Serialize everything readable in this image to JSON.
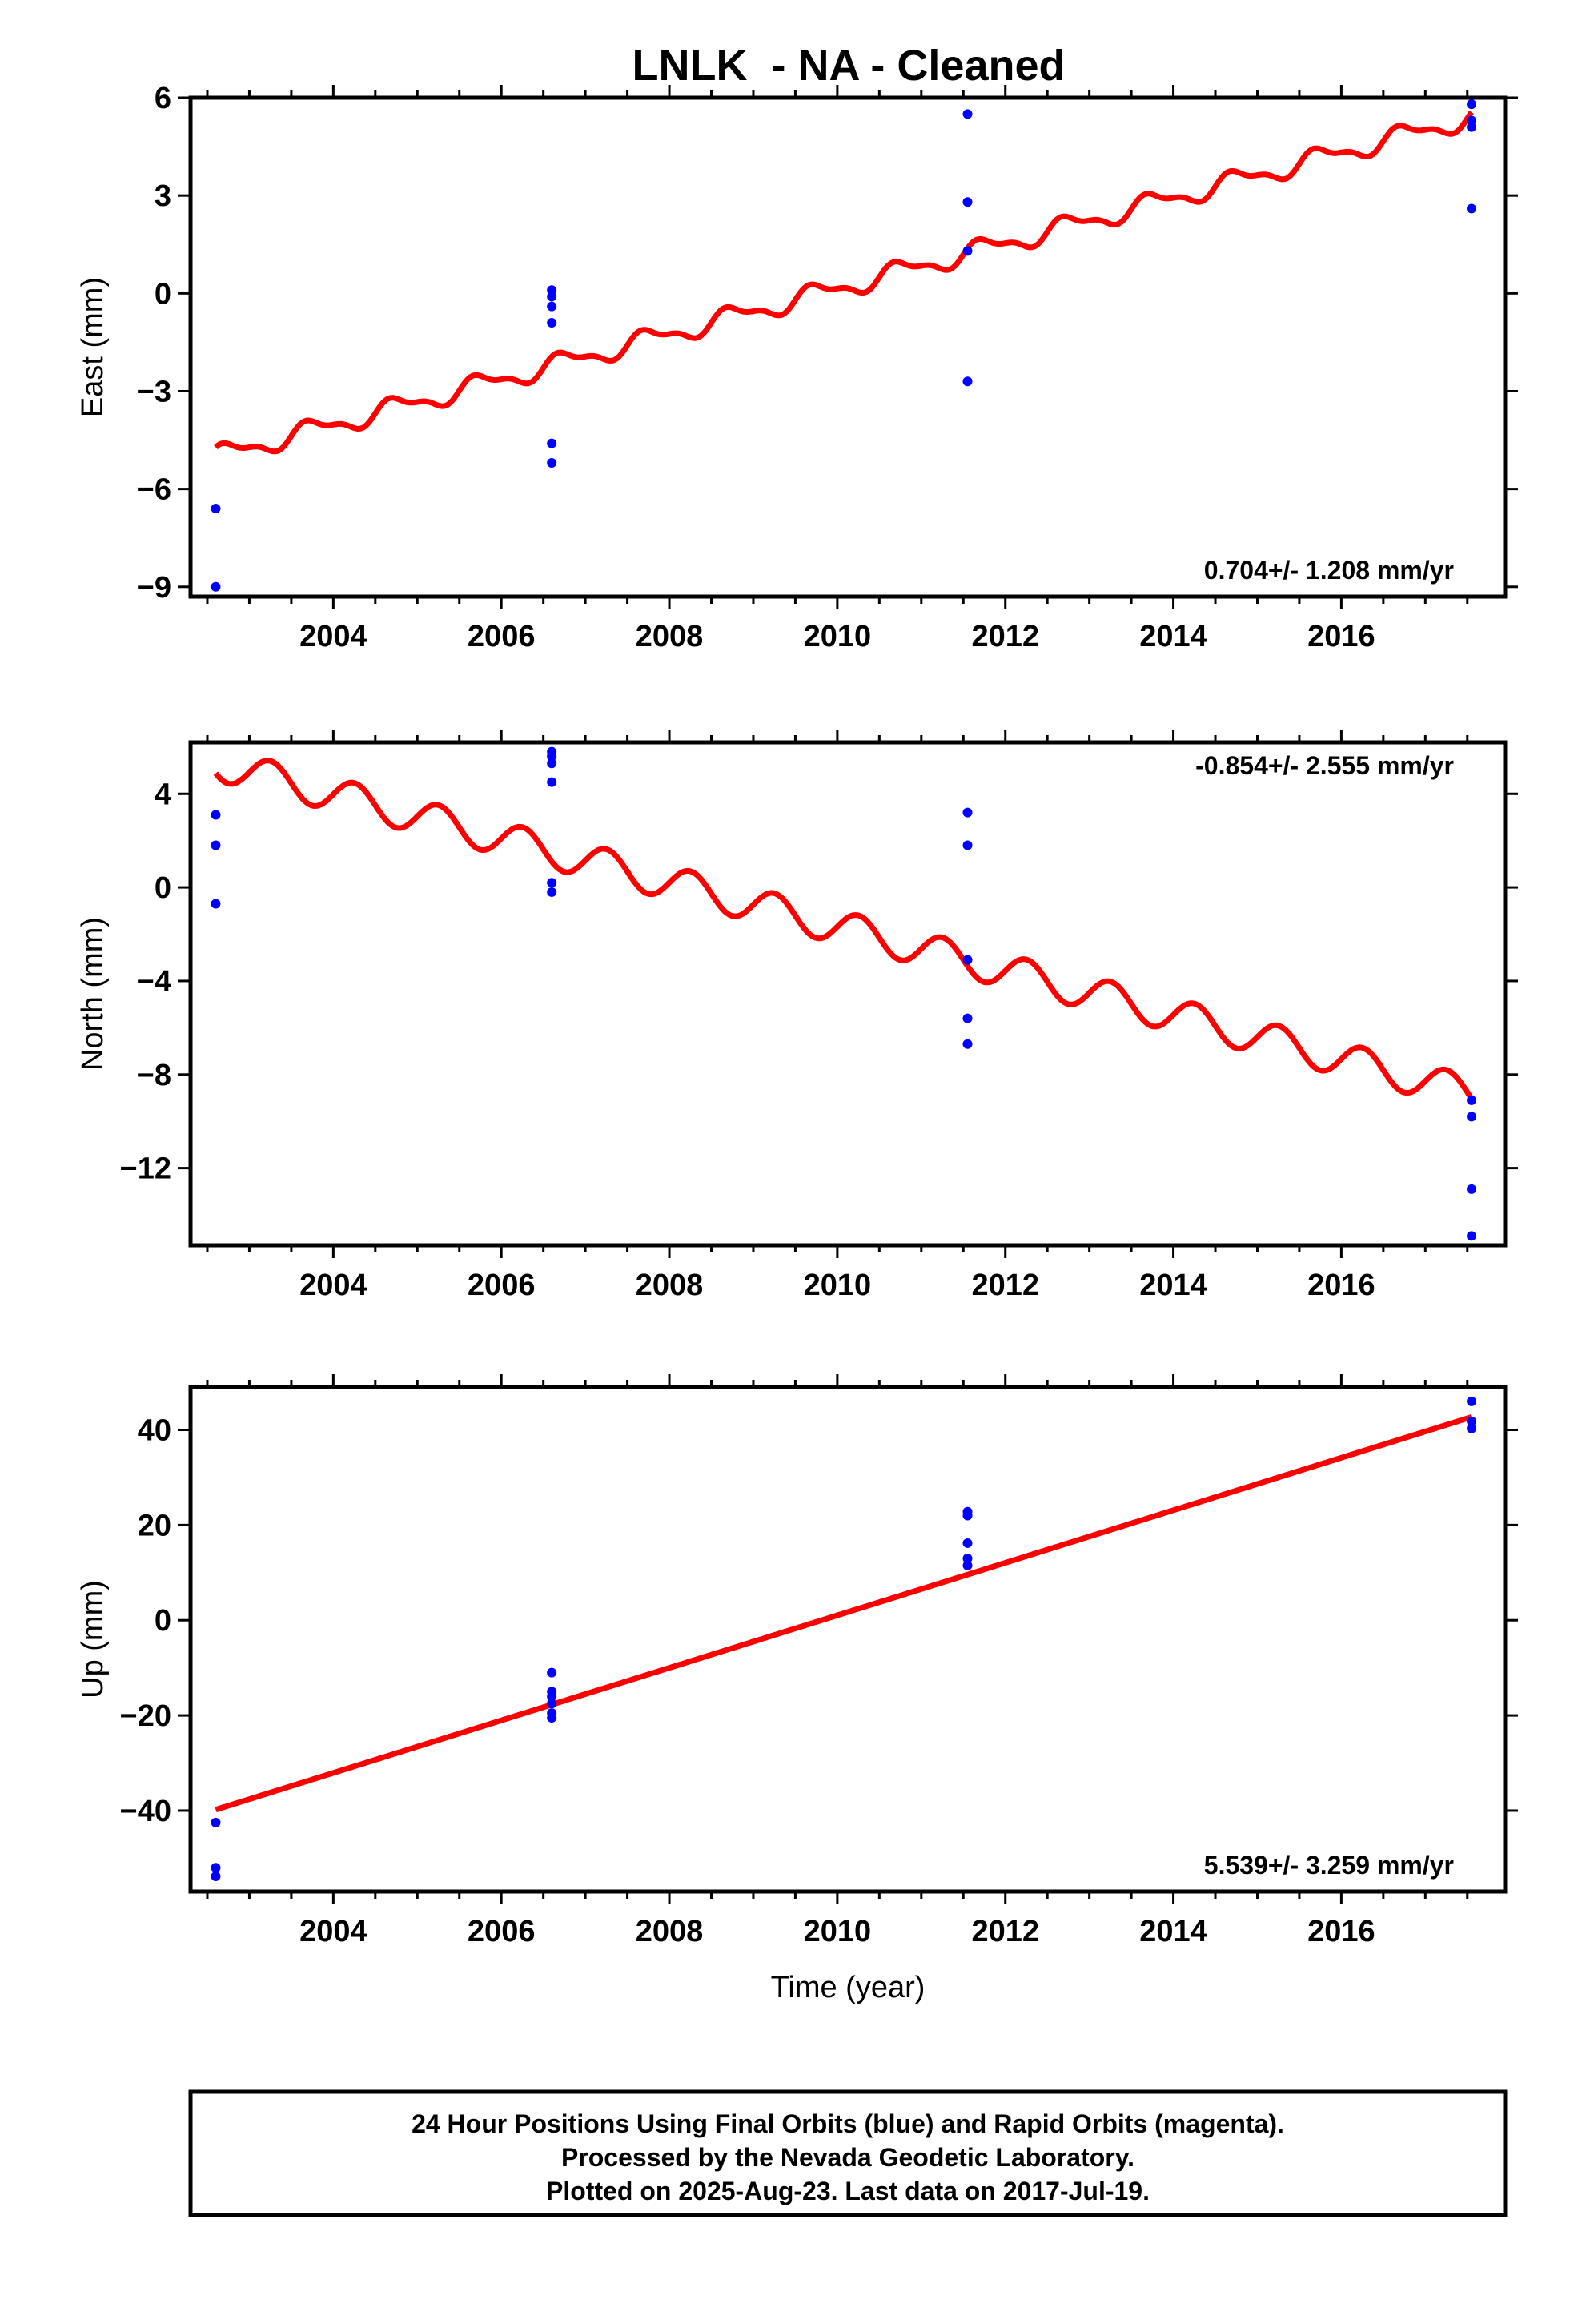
{
  "chart_data": {
    "type": "scatter",
    "title": "LNLK  - NA - Cleaned",
    "colors": {
      "final_orbits": "#0000ff",
      "model": "#ff0000",
      "frame": "#000000"
    },
    "x_ticks": [
      2004,
      2006,
      2008,
      2010,
      2012,
      2014,
      2016
    ],
    "xlim": [
      2002.3,
      2017.95
    ],
    "xlabel": "Time (year)",
    "panels": [
      {
        "ylabel": "East (mm)",
        "ylim": [
          -9.3,
          6.0
        ],
        "y_ticks": [
          -9,
          -6,
          -3,
          0,
          3,
          6
        ],
        "y_tick_labels": [
          "−9",
          "−6",
          "−3",
          "0",
          "3",
          "6"
        ],
        "rate_label": "0.704+/- 1.208 mm/yr",
        "rate_position": "bottom-right",
        "points": {
          "x": [
            2002.6,
            2002.6,
            2006.6,
            2006.6,
            2006.6,
            2006.6,
            2006.6,
            2006.6,
            2011.55,
            2011.55,
            2011.55,
            2011.55,
            2017.55,
            2017.55,
            2017.55,
            2017.55
          ],
          "y": [
            -6.6,
            -9.0,
            0.1,
            -0.4,
            -0.9,
            -4.6,
            -5.2,
            -0.1,
            5.5,
            2.8,
            1.3,
            -2.7,
            5.8,
            5.3,
            5.1,
            2.6
          ]
        },
        "model": {
          "start": 2002.6,
          "end": 2017.55,
          "y_start": -5.0,
          "y_end": 5.4,
          "annual_amp": 0.28,
          "semiannual_amp": 0.12,
          "phase": 0.5
        }
      },
      {
        "ylabel": "North (mm)",
        "ylim": [
          -15.3,
          6.2
        ],
        "y_ticks": [
          -12,
          -8,
          -4,
          0,
          4
        ],
        "y_tick_labels": [
          "−12",
          "−8",
          "−4",
          "0",
          "4"
        ],
        "rate_label": "-0.854+/- 2.555 mm/yr",
        "rate_position": "top-right",
        "points": {
          "x": [
            2002.6,
            2002.6,
            2002.6,
            2006.6,
            2006.6,
            2006.6,
            2006.6,
            2006.6,
            2006.6,
            2011.55,
            2011.55,
            2011.55,
            2011.55,
            2011.55,
            2017.55,
            2017.55,
            2017.55,
            2017.55
          ],
          "y": [
            3.1,
            1.8,
            -0.7,
            5.6,
            5.3,
            4.5,
            0.2,
            -0.2,
            5.8,
            3.2,
            1.8,
            -3.1,
            -5.6,
            -6.7,
            -9.1,
            -9.8,
            -12.9,
            -14.9
          ],
          "model": {
            "start": 2002.6,
            "end": 2017.55,
            "y_start": 5.3,
            "y_end": -8.8,
            "annual_amp": 0.72,
            "semiannual_amp": 0.0,
            "phase": 0.0
          }
        },
        "model": {
          "start": 2002.6,
          "end": 2017.55,
          "y_start": 5.3,
          "y_end": -8.8,
          "annual_amp": 0.72,
          "semiannual_amp": 0.0,
          "phase": 0.0
        }
      },
      {
        "ylabel": "Up (mm)",
        "ylim": [
          -57,
          49
        ],
        "y_ticks": [
          -40,
          -20,
          0,
          20,
          40
        ],
        "y_tick_labels": [
          "−40",
          "−20",
          "0",
          "20",
          "40"
        ],
        "rate_label": "5.539+/- 3.259 mm/yr",
        "rate_position": "bottom-right",
        "points": {
          "x": [
            2002.6,
            2002.6,
            2002.6,
            2006.6,
            2006.6,
            2006.6,
            2006.6,
            2006.6,
            2006.6,
            2011.55,
            2011.55,
            2011.55,
            2011.55,
            2011.55,
            2017.55,
            2017.55,
            2017.55
          ],
          "y": [
            -42.5,
            -52.0,
            -53.8,
            -11.0,
            -15.0,
            -16.0,
            -17.5,
            -19.5,
            -20.5,
            22.8,
            22.0,
            16.2,
            13.0,
            11.5,
            46.0,
            41.8,
            40.3
          ]
        },
        "model": {
          "start": 2002.6,
          "end": 2017.55,
          "y_start": -39.8,
          "y_end": 42.7,
          "annual_amp": 0.0,
          "semiannual_amp": 0.0,
          "phase": 0.0
        }
      }
    ]
  },
  "footer": {
    "line1": "24 Hour Positions Using Final Orbits (blue) and Rapid Orbits (magenta).",
    "line2": "Processed by the Nevada Geodetic Laboratory.",
    "line3": "Plotted on 2025-Aug-23. Last data on 2017-Jul-19."
  }
}
